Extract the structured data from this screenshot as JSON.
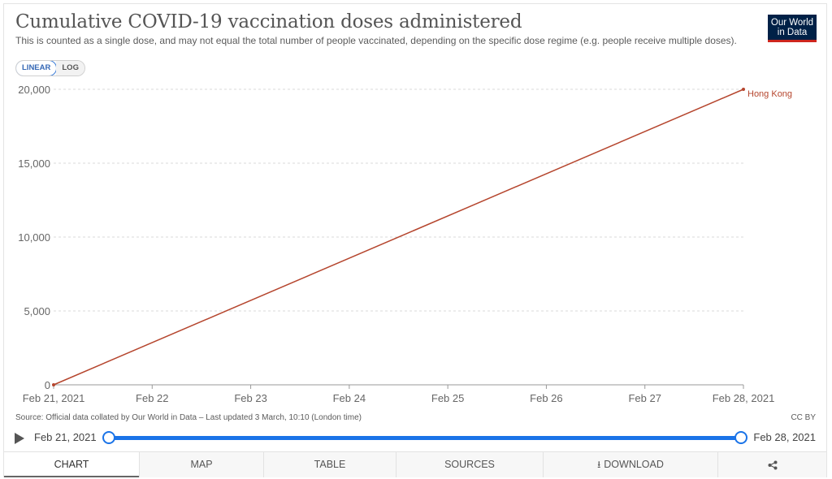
{
  "header": {
    "title": "Cumulative COVID-19 vaccination doses administered",
    "subtitle": "This is counted as a single dose, and may not equal the total number of people vaccinated, depending on the specific dose regime (e.g. people receive multiple doses).",
    "logo_line1": "Our World",
    "logo_line2": "in Data"
  },
  "scale_toggle": {
    "linear": "LINEAR",
    "log": "LOG",
    "selected": "LINEAR"
  },
  "chart_data": {
    "type": "line",
    "title": "Cumulative COVID-19 vaccination doses administered",
    "xlabel": "",
    "ylabel": "",
    "x": [
      "Feb 21, 2021",
      "Feb 28, 2021"
    ],
    "x_ticks": [
      "Feb 21, 2021",
      "Feb 22",
      "Feb 23",
      "Feb 24",
      "Feb 25",
      "Feb 26",
      "Feb 27",
      "Feb 28, 2021"
    ],
    "y_ticks": [
      0,
      5000,
      10000,
      15000,
      20000
    ],
    "y_tick_labels": [
      "0",
      "5,000",
      "10,000",
      "15,000",
      "20,000"
    ],
    "ylim": [
      0,
      20000
    ],
    "grid": true,
    "series": [
      {
        "name": "Hong Kong",
        "color": "#b5452d",
        "x_index": [
          0,
          7
        ],
        "values": [
          0,
          20000
        ]
      }
    ]
  },
  "footer": {
    "source": "Source: Official data collated by Our World in Data – Last updated 3 March, 10:10 (London time)",
    "license": "CC BY"
  },
  "timeline": {
    "start": "Feb 21, 2021",
    "end": "Feb 28, 2021"
  },
  "tabs": [
    {
      "label": "CHART",
      "active": true
    },
    {
      "label": "MAP"
    },
    {
      "label": "TABLE"
    },
    {
      "label": "SOURCES"
    },
    {
      "label": "DOWNLOAD",
      "icon": "download-icon"
    },
    {
      "label": "",
      "icon": "share-icon"
    }
  ],
  "colors": {
    "accent": "#1a73e8",
    "series": "#b5452d",
    "logo_bg": "#002147",
    "logo_bar": "#ce261e"
  }
}
